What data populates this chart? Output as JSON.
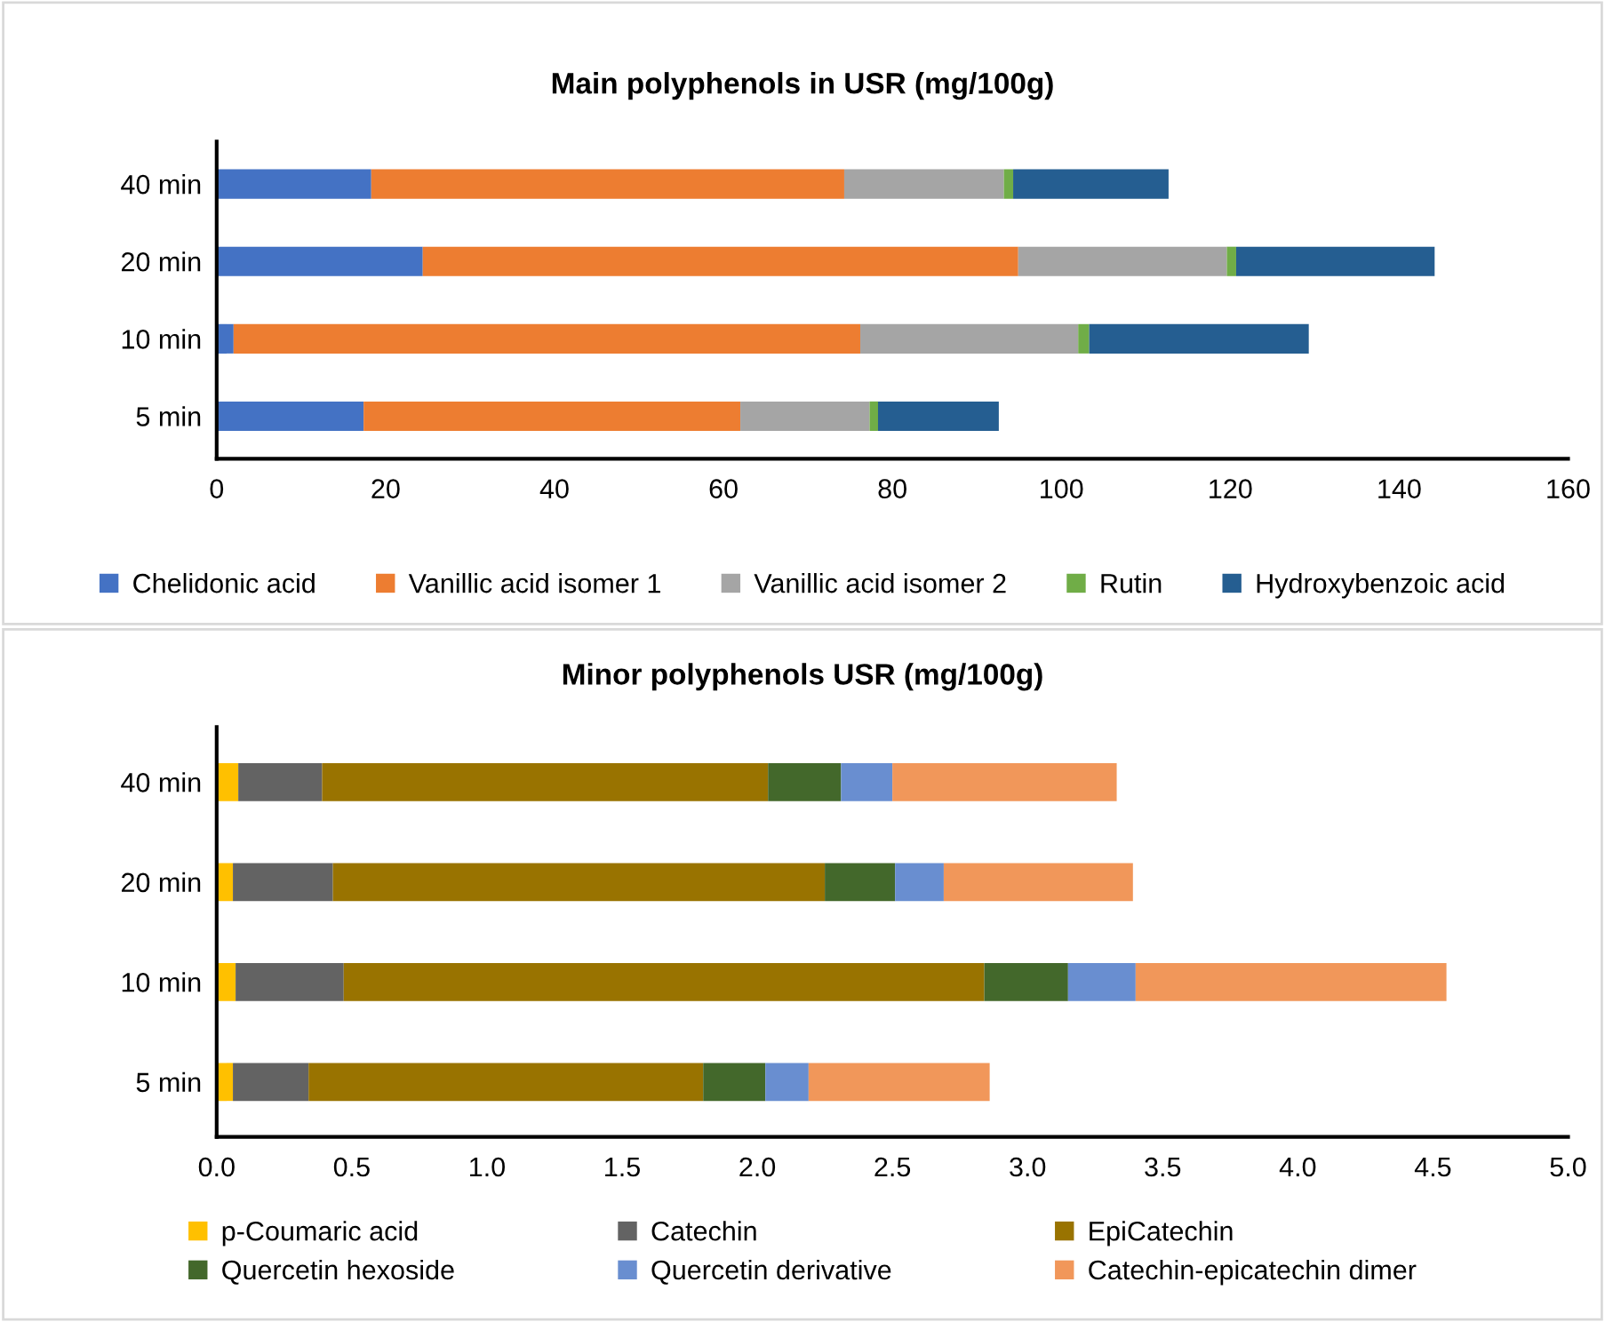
{
  "chart_data": [
    {
      "type": "bar",
      "orientation": "horizontal",
      "stacked": true,
      "title": "Main polyphenols in USR (mg/100g)",
      "categories": [
        "40 min",
        "20 min",
        "10 min",
        "5 min"
      ],
      "series": [
        {
          "name": "Chelidonic acid",
          "color": "#4472c4",
          "values": [
            18.3,
            24.4,
            2.0,
            17.4
          ]
        },
        {
          "name": "Vanillic acid isomer 1",
          "color": "#ed7d31",
          "values": [
            56.0,
            70.5,
            74.2,
            44.6
          ]
        },
        {
          "name": "Vanillic acid isomer 2",
          "color": "#a5a5a5",
          "values": [
            18.9,
            24.7,
            25.8,
            15.3
          ]
        },
        {
          "name": "Rutin",
          "color": "#70ad47",
          "values": [
            1.1,
            1.1,
            1.3,
            1.0
          ]
        },
        {
          "name": "Hydroxybenzoic acid",
          "color": "#255e91",
          "values": [
            18.4,
            23.5,
            26.0,
            14.3
          ]
        }
      ],
      "xlim": [
        0,
        160
      ],
      "xticks": [
        0,
        20,
        40,
        60,
        80,
        100,
        120,
        140,
        160
      ],
      "grid": false,
      "legend": "bottom"
    },
    {
      "type": "bar",
      "orientation": "horizontal",
      "stacked": true,
      "title": "Minor polyphenols USR (mg/100g)",
      "categories": [
        "40 min",
        "20 min",
        "10 min",
        "5 min"
      ],
      "series": [
        {
          "name": "p-Coumaric acid",
          "color": "#ffc000",
          "values": [
            0.08,
            0.06,
            0.07,
            0.06
          ]
        },
        {
          "name": "Catechin",
          "color": "#636363",
          "values": [
            0.31,
            0.37,
            0.4,
            0.28
          ]
        },
        {
          "name": "EpiCatechin",
          "color": "#997300",
          "values": [
            1.65,
            1.82,
            2.37,
            1.46
          ]
        },
        {
          "name": "Quercetin hexoside",
          "color": "#43682b",
          "values": [
            0.27,
            0.26,
            0.31,
            0.23
          ]
        },
        {
          "name": "Quercetin derivative",
          "color": "#698ed0",
          "values": [
            0.19,
            0.18,
            0.25,
            0.16
          ]
        },
        {
          "name": "Catechin-epicatechin dimer",
          "color": "#f1975a",
          "values": [
            0.83,
            0.7,
            1.15,
            0.67
          ]
        }
      ],
      "xlim": [
        0,
        5.0
      ],
      "xticks": [
        {
          "value": 0,
          "label": "0.0"
        },
        0.5,
        {
          "value": 1,
          "label": "1.0"
        },
        1.5,
        {
          "value": 2,
          "label": "2.0"
        },
        2.5,
        {
          "value": 3,
          "label": "3.0"
        },
        3.5,
        {
          "value": 4,
          "label": "4.0"
        },
        4.5,
        {
          "value": 5,
          "label": "5.0"
        }
      ],
      "grid": false,
      "legend": "bottom"
    }
  ]
}
